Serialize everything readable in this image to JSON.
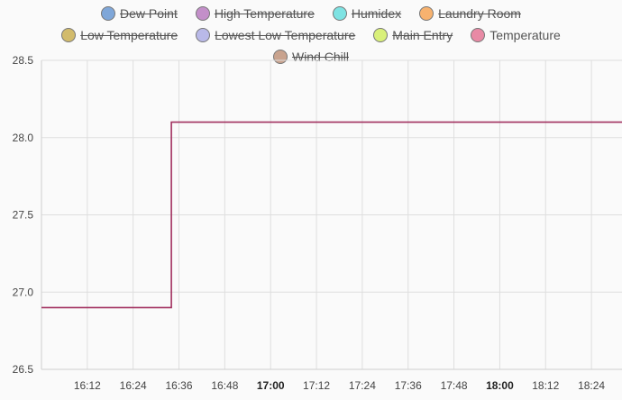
{
  "chart_data": {
    "type": "line",
    "step": true,
    "xlabel": "",
    "ylabel": "",
    "ylim": [
      26.5,
      28.5
    ],
    "yticks": [
      "28.5",
      "28.0",
      "27.5",
      "27.0",
      "26.5"
    ],
    "xlim": [
      "16:00",
      "18:32"
    ],
    "xticks": [
      {
        "label": "16:12",
        "bold": false
      },
      {
        "label": "16:24",
        "bold": false
      },
      {
        "label": "16:36",
        "bold": false
      },
      {
        "label": "16:48",
        "bold": false
      },
      {
        "label": "17:00",
        "bold": true
      },
      {
        "label": "17:12",
        "bold": false
      },
      {
        "label": "17:24",
        "bold": false
      },
      {
        "label": "17:36",
        "bold": false
      },
      {
        "label": "17:48",
        "bold": false
      },
      {
        "label": "18:00",
        "bold": true
      },
      {
        "label": "18:12",
        "bold": false
      },
      {
        "label": "18:24",
        "bold": false
      }
    ],
    "grid": true,
    "legend_position": "top",
    "legend": [
      {
        "name": "Dew Point",
        "color": "#7fa7d9",
        "hidden": true
      },
      {
        "name": "High Temperature",
        "color": "#c38fc9",
        "hidden": true
      },
      {
        "name": "Humidex",
        "color": "#7ee3e3",
        "hidden": true
      },
      {
        "name": "Laundry Room",
        "color": "#f7b26f",
        "hidden": true
      },
      {
        "name": "Low Temperature",
        "color": "#d2bb6c",
        "hidden": true
      },
      {
        "name": "Lowest Low Temperature",
        "color": "#b9b9e8",
        "hidden": true
      },
      {
        "name": "Main Entry",
        "color": "#d9f07a",
        "hidden": true
      },
      {
        "name": "Temperature",
        "color": "#e88aa5",
        "hidden": false
      },
      {
        "name": "Wind Chill",
        "color": "#c9a38e",
        "hidden": true
      }
    ],
    "series": [
      {
        "name": "Temperature",
        "color": "#a1305f",
        "x": [
          "16:00",
          "16:34",
          "16:34",
          "18:32"
        ],
        "values": [
          26.9,
          26.9,
          28.1,
          28.1
        ]
      }
    ]
  }
}
